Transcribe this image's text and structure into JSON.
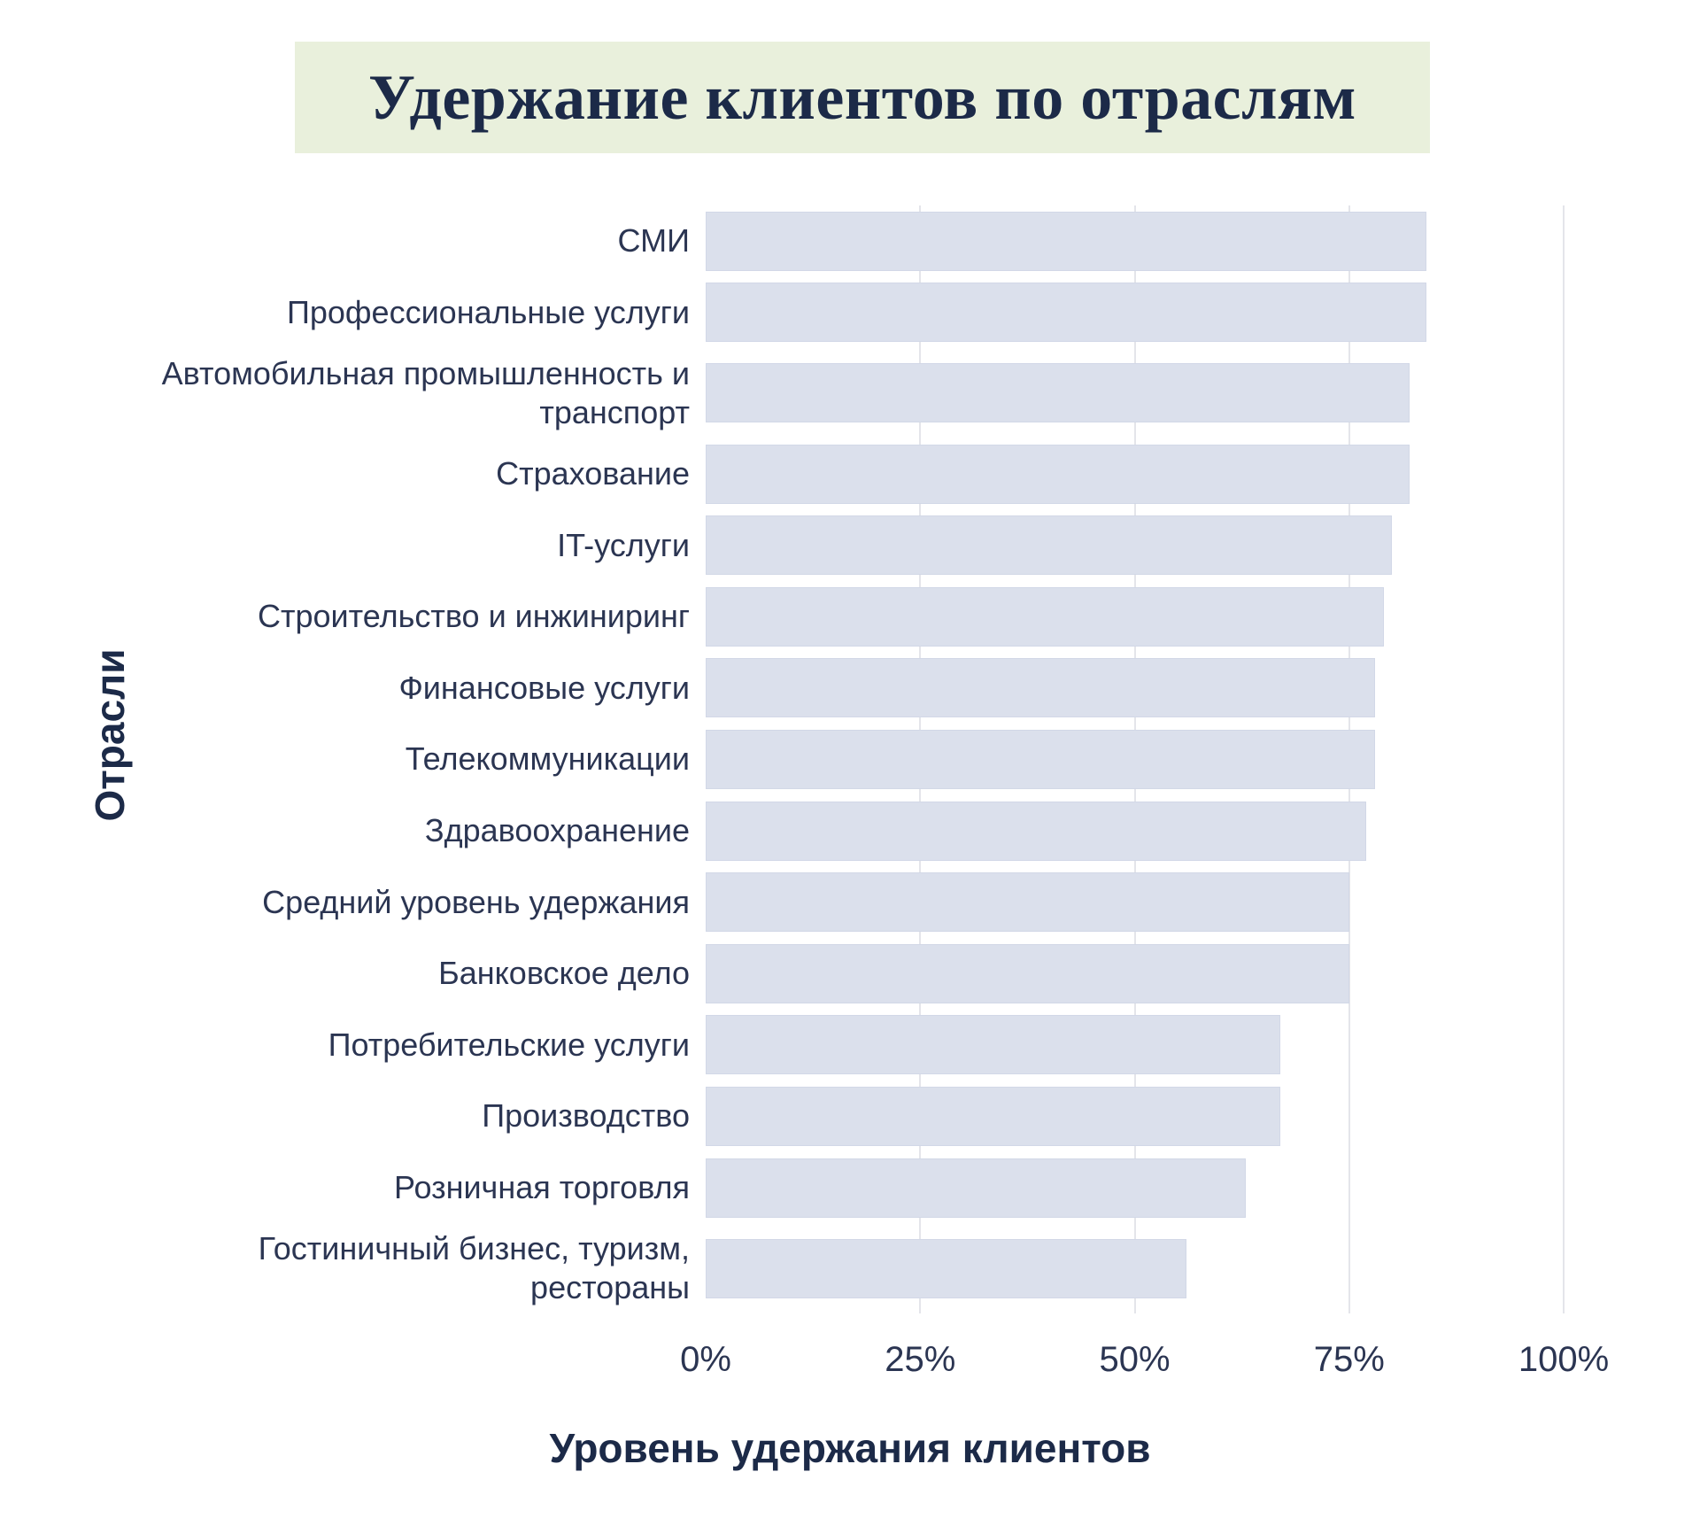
{
  "title": "Удержание клиентов по отраслям",
  "axes": {
    "x_title": "Уровень удержания клиентов",
    "y_title": "Отрасли"
  },
  "colors": {
    "bar": "#dbe0ec",
    "bar_border": "#d2d8e7",
    "gridline": "#e4e5ea",
    "text": "#2b3552",
    "heading": "#1c2a48",
    "title_background": "#e9f0dc",
    "page_background": "#ffffff"
  },
  "chart_data": {
    "type": "bar",
    "orientation": "horizontal",
    "title": "Удержание клиентов по отраслям",
    "xlabel": "Уровень удержания клиентов",
    "ylabel": "Отрасли",
    "unit": "%",
    "xlim": [
      0,
      100
    ],
    "grid": "vertical",
    "legend_position": "none",
    "x_tick_percents": [
      0,
      25,
      50,
      75,
      100
    ],
    "x_tick_labels": [
      "0%",
      "25%",
      "50%",
      "75%",
      "100%"
    ],
    "categories": [
      "СМИ",
      "Профессиональные услуги",
      "Автомобильная промышленность и транспорт",
      "Страхование",
      "IT-услуги",
      "Строительство и инжиниринг",
      "Финансовые услуги",
      "Телекоммуникации",
      "Здравоохранение",
      "Средний уровень удержания",
      "Банковское дело",
      "Потребительские услуги",
      "Производство",
      "Розничная торговля",
      "Гостиничный бизнес, туризм, рестораны"
    ],
    "values": [
      84,
      84,
      82,
      82,
      80,
      79,
      78,
      78,
      77,
      75,
      75,
      67,
      67,
      63,
      56
    ]
  }
}
